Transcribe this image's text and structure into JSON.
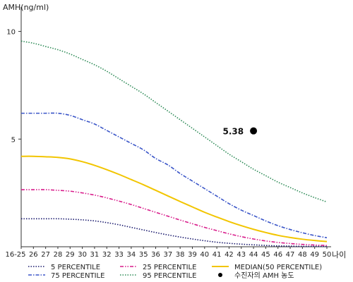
{
  "chart_data": {
    "type": "line",
    "title": "",
    "ylabel": "AMH(ng/ml)",
    "xlabel": "나이",
    "ylim": [
      0,
      11
    ],
    "yticks": [
      5,
      10
    ],
    "categories": [
      "16-25",
      "26",
      "27",
      "28",
      "29",
      "30",
      "31",
      "32",
      "33",
      "34",
      "35",
      "36",
      "37",
      "38",
      "39",
      "40",
      "41",
      "42",
      "43",
      "44",
      "45",
      "46",
      "47",
      "48",
      "49",
      "50"
    ],
    "series": [
      {
        "name": "5 PERCENTILE",
        "color": "#1a1a6e",
        "style": "dotted",
        "values": [
          1.3,
          1.3,
          1.3,
          1.3,
          1.28,
          1.25,
          1.2,
          1.12,
          1.02,
          0.9,
          0.78,
          0.66,
          0.55,
          0.45,
          0.36,
          0.28,
          0.21,
          0.16,
          0.12,
          0.09,
          0.06,
          0.04,
          0.03,
          0.02,
          0.02,
          0.01
        ]
      },
      {
        "name": "75 PERCENTILE",
        "color": "#3a55c8",
        "style": "dashdot",
        "values": [
          6.2,
          6.2,
          6.2,
          6.2,
          6.1,
          5.9,
          5.7,
          5.4,
          5.1,
          4.8,
          4.5,
          4.1,
          3.8,
          3.4,
          3.05,
          2.7,
          2.35,
          2.0,
          1.7,
          1.45,
          1.2,
          0.98,
          0.8,
          0.65,
          0.52,
          0.42
        ]
      },
      {
        "name": "25 PERCENTILE",
        "color": "#d81b8a",
        "style": "dashdotdot",
        "values": [
          2.65,
          2.65,
          2.65,
          2.62,
          2.58,
          2.5,
          2.4,
          2.27,
          2.12,
          1.96,
          1.78,
          1.6,
          1.42,
          1.24,
          1.07,
          0.9,
          0.75,
          0.6,
          0.47,
          0.36,
          0.27,
          0.2,
          0.15,
          0.11,
          0.08,
          0.06
        ]
      },
      {
        "name": "95 PERCENTILE",
        "color": "#2e8b57",
        "style": "dotted",
        "values": [
          9.55,
          9.45,
          9.3,
          9.15,
          8.95,
          8.7,
          8.45,
          8.15,
          7.8,
          7.45,
          7.1,
          6.7,
          6.3,
          5.9,
          5.5,
          5.1,
          4.7,
          4.3,
          3.95,
          3.6,
          3.3,
          3.0,
          2.75,
          2.5,
          2.28,
          2.08
        ]
      },
      {
        "name": "MEDIAN(50 PERCENTILE)",
        "color": "#f2c500",
        "style": "solid",
        "values": [
          4.2,
          4.2,
          4.18,
          4.15,
          4.08,
          3.95,
          3.78,
          3.58,
          3.36,
          3.12,
          2.88,
          2.62,
          2.36,
          2.1,
          1.85,
          1.6,
          1.38,
          1.17,
          0.98,
          0.81,
          0.66,
          0.53,
          0.43,
          0.35,
          0.29,
          0.24
        ]
      }
    ],
    "point": {
      "name": "수진자의 AMH 농도",
      "x": "44",
      "y": 5.38,
      "label": "5.38",
      "color": "#000000"
    },
    "grid": false,
    "legend_placement": "bottom"
  }
}
